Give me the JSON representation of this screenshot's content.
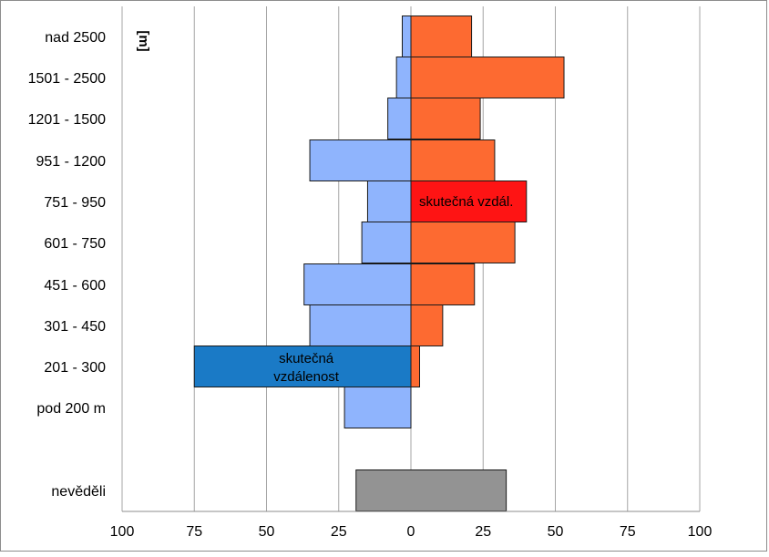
{
  "chart_data": {
    "type": "bar",
    "orientation": "horizontal",
    "unit_label": "[m]",
    "categories": [
      "nad 2500",
      "1501 - 2500",
      "1201 - 1500",
      "951 - 1200",
      "751 - 950",
      "601 - 750",
      "451 - 600",
      "301 - 450",
      "201 - 300",
      "pod 200 m",
      "nevěděli"
    ],
    "left_values": [
      3,
      5,
      8,
      35,
      15,
      17,
      37,
      35,
      75,
      23,
      19
    ],
    "right_values": [
      21,
      53,
      24,
      29,
      40,
      36,
      22,
      11,
      3,
      0,
      33
    ],
    "highlights": [
      {
        "category": "201 - 300",
        "side": "left",
        "label": "skutečná vzdálenost"
      },
      {
        "category": "751 - 950",
        "side": "right",
        "label": "skutečná vzdál."
      }
    ],
    "xlim": [
      -100,
      100
    ],
    "xticks": [
      -100,
      -75,
      -50,
      -25,
      0,
      25,
      50,
      75,
      100
    ],
    "xtick_labels": [
      "100",
      "75",
      "50",
      "25",
      "0",
      "25",
      "50",
      "75",
      "100"
    ],
    "grid": "vertical",
    "legend": "none",
    "colors": {
      "left": "#8fb4fd",
      "right": "#fd6a31",
      "left_highlight": "#1a7ac6",
      "right_highlight": "#fe1414",
      "unknown": "#939393",
      "grid": "#a6a6a6",
      "bar_edge": "#1a1a1a"
    }
  }
}
